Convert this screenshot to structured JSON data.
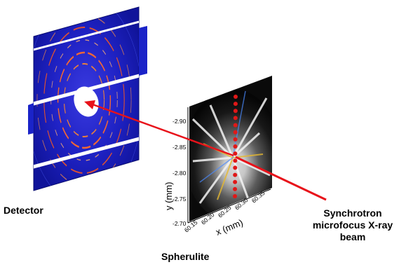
{
  "labels": {
    "detector": "Detector",
    "spherulite": "Spherulite",
    "beam_line1": "Synchrotron",
    "beam_line2": "microfocus X-ray",
    "beam_line3": "beam"
  },
  "axes": {
    "y_label": "y (mm)",
    "x_label": "x (mm)",
    "y_ticks": [
      "-2.90",
      "-2.85",
      "-2.80",
      "-2.75",
      "-2.70"
    ],
    "x_ticks": [
      "60.15",
      "60.20",
      "60.25",
      "60.30",
      "60.35"
    ]
  },
  "colors": {
    "detector_blue": "#1a23c8",
    "ring_orange": "#ff8a2a",
    "beam_red": "#e8121a",
    "scan_dot_red": "#e01818"
  },
  "scan_points": 15
}
